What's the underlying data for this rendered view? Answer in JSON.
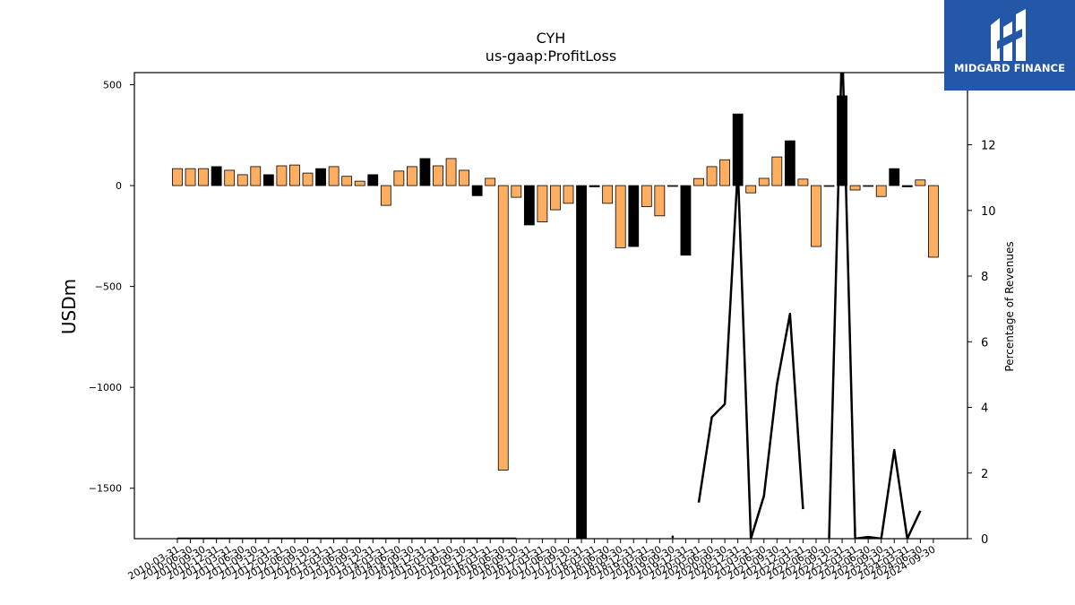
{
  "brand": {
    "name": "MIDGARD FINANCE",
    "logo_icon": "midgard-m-logo-icon",
    "background": "#2358a8"
  },
  "chart_data": {
    "type": "bar",
    "title": "CYH",
    "subtitle": "us-gaap:ProfitLoss",
    "ylabel": "USDm",
    "y2label": "Percentage of Revenues",
    "ylim": [
      -1750,
      560
    ],
    "y2lim": [
      0,
      14.2
    ],
    "yticks": [
      -1500,
      -1000,
      -500,
      0,
      500
    ],
    "y2ticks": [
      0,
      2,
      4,
      6,
      8,
      10,
      12,
      14
    ],
    "colors": {
      "positive_growth": "#fdae61",
      "negative_growth": "#000000",
      "line": "#000000"
    },
    "dates": [
      "2010-03-31",
      "2010-06-30",
      "2010-09-30",
      "2010-12-31",
      "2011-03-31",
      "2011-06-30",
      "2011-09-30",
      "2011-12-31",
      "2012-03-31",
      "2012-06-30",
      "2012-09-30",
      "2012-12-31",
      "2013-03-31",
      "2013-06-30",
      "2013-09-30",
      "2013-12-31",
      "2014-03-31",
      "2014-06-30",
      "2014-09-30",
      "2014-12-31",
      "2015-03-31",
      "2015-06-30",
      "2015-09-30",
      "2015-12-31",
      "2016-03-31",
      "2016-06-30",
      "2016-09-30",
      "2016-12-31",
      "2017-03-31",
      "2017-06-30",
      "2017-09-30",
      "2017-12-31",
      "2018-03-31",
      "2018-06-30",
      "2018-09-30",
      "2018-12-31",
      "2019-03-31",
      "2019-06-30",
      "2019-09-30",
      "2019-12-31",
      "2020-03-31",
      "2020-06-30",
      "2020-09-30",
      "2020-12-31",
      "2021-03-31",
      "2021-06-30",
      "2021-09-30",
      "2021-12-31",
      "2022-03-31",
      "2022-06-30",
      "2022-09-30",
      "2022-12-31",
      "2023-03-31",
      "2023-06-30",
      "2023-09-30",
      "2023-12-31",
      "2024-03-31",
      "2024-06-30",
      "2024-09-30"
    ],
    "values": [
      84,
      84,
      84,
      94,
      76,
      54,
      94,
      54,
      98,
      102,
      62,
      84,
      94,
      46,
      22,
      54,
      -98,
      72,
      94,
      134,
      98,
      134,
      76,
      -50,
      36,
      -1410,
      -58,
      -195,
      -180,
      -120,
      -88,
      -1760,
      -6,
      -88,
      -308,
      -302,
      -104,
      -150,
      -4,
      -345,
      35,
      94,
      128,
      355,
      -36,
      36,
      142,
      222,
      32,
      -302,
      -4,
      445,
      -22,
      -4,
      -54,
      84,
      -6,
      28,
      -355
    ],
    "bar_colors": [
      "o",
      "o",
      "o",
      "k",
      "o",
      "o",
      "o",
      "k",
      "o",
      "o",
      "o",
      "k",
      "o",
      "o",
      "o",
      "k",
      "o",
      "o",
      "o",
      "k",
      "o",
      "o",
      "o",
      "k",
      "o",
      "o",
      "o",
      "k",
      "o",
      "o",
      "o",
      "k",
      "k",
      "o",
      "o",
      "k",
      "o",
      "o",
      "o",
      "k",
      "o",
      "o",
      "o",
      "k",
      "o",
      "o",
      "o",
      "k",
      "o",
      "o",
      "o",
      "k",
      "o",
      "o",
      "o",
      "k",
      "k",
      "o",
      "o"
    ],
    "pct_of_revenues": [
      0,
      0,
      0,
      0,
      0,
      0,
      0,
      0,
      0,
      0,
      0,
      0,
      0,
      0,
      0,
      0,
      0,
      0,
      0,
      0,
      0,
      0,
      0,
      0,
      0,
      0,
      0,
      null,
      null,
      null,
      null,
      null,
      null,
      null,
      null,
      null,
      null,
      null,
      0.05,
      null,
      1.1,
      3.7,
      4.1,
      11.3,
      0,
      1.3,
      4.7,
      6.85,
      0.9,
      null,
      0,
      15.2,
      0,
      0.05,
      0,
      2.7,
      0,
      0.85,
      null
    ],
    "xtick_labels": [
      "2010-03-31",
      "2010-06-30",
      "2010-09-30",
      "2010-12-31",
      "2011-03-31",
      "2011-06-30",
      "2011-09-30",
      "2011-12-31",
      "2012-03-31",
      "2012-06-30",
      "2012-09-30",
      "2012-12-31",
      "2013-03-31",
      "2013-06-30",
      "2013-09-30",
      "2013-12-31",
      "2014-03-31",
      "2014-06-30",
      "2014-09-30",
      "2014-12-31",
      "2015-03-31",
      "2015-06-30",
      "2015-09-30",
      "2015-12-31",
      "2016-03-31",
      "2016-06-30",
      "2016-09-30",
      "2016-12-31",
      "2017-03-31",
      "2017-06-30",
      "2017-09-30",
      "2017-12-31",
      "2018-03-31",
      "2018-06-30",
      "2018-09-30",
      "2018-12-31",
      "2019-03-31",
      "2019-06-30",
      "2019-09-30",
      "2019-12-31",
      "2020-03-31",
      "2020-06-30",
      "2020-09-30",
      "2020-12-31",
      "2021-03-31",
      "2021-06-30",
      "2021-09-30",
      "2021-12-31",
      "2022-03-31",
      "2022-06-30",
      "2022-09-30",
      "2022-12-31",
      "2023-03-31",
      "2023-06-30",
      "2023-09-30",
      "2023-12-31",
      "2024-03-31",
      "2024-06-30",
      "2024-09-30"
    ],
    "grid": false,
    "legend": "none"
  }
}
